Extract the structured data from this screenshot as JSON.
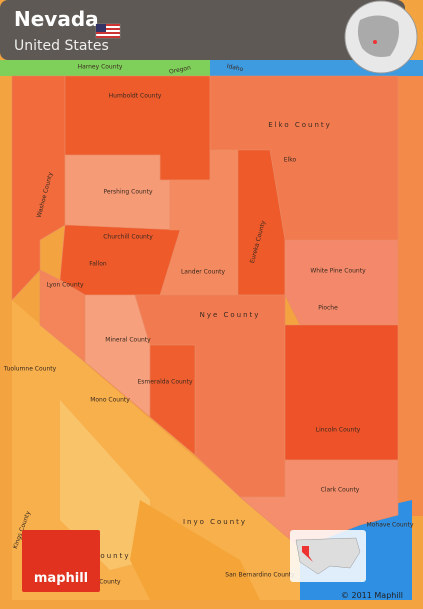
{
  "header": {
    "title": "Nevada",
    "subtitle": "United States"
  },
  "labels": [
    "Harney County",
    "Oregon",
    "Idaho",
    "Humboldt County",
    "Elko County",
    "Elko",
    "Washoe County",
    "Pershing County",
    "Churchill County",
    "Fallon",
    "Eureka County",
    "Lander County",
    "White Pine County",
    "Lyon County",
    "Nye County",
    "Mineral County",
    "Esmeralda County",
    "Lincoln County",
    "Mono County",
    "Tuolumne County",
    "Clark County",
    "Inyo County",
    "Tulare County",
    "Kings County",
    "San Bernardino County",
    "Mohave County",
    "County",
    "Pioche"
  ],
  "logo": "maphill",
  "copyright": "© 2011 Maphill"
}
